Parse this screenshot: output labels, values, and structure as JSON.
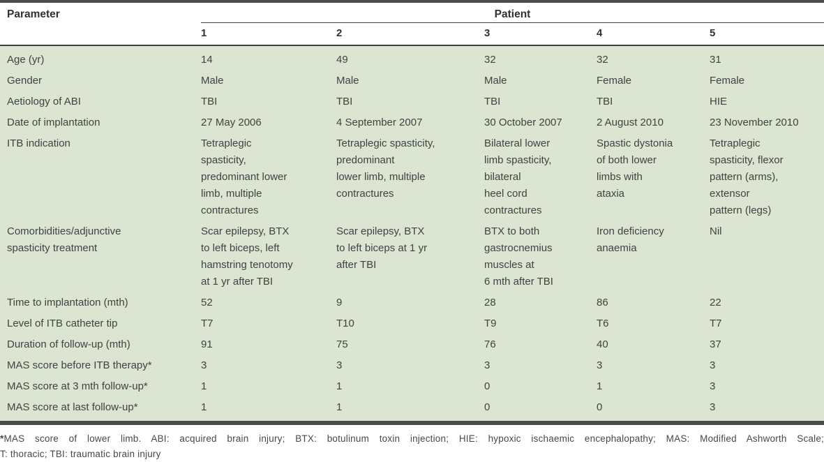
{
  "colors": {
    "body_bg": "#dce4d2",
    "border": "#484d48",
    "text": "#3e4440",
    "header_text": "#2e3331",
    "footnote_text": "#45494a"
  },
  "table": {
    "column_headers": {
      "parameter": "Parameter",
      "group": "Patient",
      "patients": [
        "1",
        "2",
        "3",
        "4",
        "5"
      ]
    },
    "rows": [
      {
        "label": "Age (yr)",
        "values": [
          "14",
          "49",
          "32",
          "32",
          "31"
        ]
      },
      {
        "label": "Gender",
        "values": [
          "Male",
          "Male",
          "Male",
          "Female",
          "Female"
        ]
      },
      {
        "label": "Aetiology of ABI",
        "values": [
          "TBI",
          "TBI",
          "TBI",
          "TBI",
          "HIE"
        ]
      },
      {
        "label": "Date of implantation",
        "values": [
          "27 May 2006",
          "4 September 2007",
          "30 October 2007",
          "2 August 2010",
          "23 November 2010"
        ]
      },
      {
        "label": "ITB indication",
        "values": [
          "Tetraplegic\nspasticity,\npredominant lower\nlimb, multiple\ncontractures",
          "Tetraplegic spasticity,\npredominant\nlower limb, multiple\ncontractures",
          "Bilateral lower\nlimb spasticity,\nbilateral\nheel cord\ncontractures",
          "Spastic dystonia\nof both lower\nlimbs with\nataxia",
          "Tetraplegic\nspasticity, flexor\npattern (arms),\nextensor\npattern (legs)"
        ]
      },
      {
        "label": "Comorbidities/adjunctive\nspasticity treatment",
        "values": [
          "Scar epilepsy, BTX\nto left biceps, left\nhamstring tenotomy\nat 1 yr after TBI",
          "Scar epilepsy, BTX\nto left biceps at 1 yr\nafter TBI",
          "BTX to both\ngastrocnemius\nmuscles at\n6 mth after TBI",
          "Iron deficiency\nanaemia",
          "Nil"
        ]
      },
      {
        "label": "Time to implantation (mth)",
        "values": [
          "52",
          "9",
          "28",
          "86",
          "22"
        ]
      },
      {
        "label": "Level of ITB catheter tip",
        "values": [
          "T7",
          "T10",
          "T9",
          "T6",
          "T7"
        ]
      },
      {
        "label": "Duration of follow-up (mth)",
        "values": [
          "91",
          "75",
          "76",
          "40",
          "37"
        ]
      },
      {
        "label": "MAS score before ITB therapy*",
        "values": [
          "3",
          "3",
          "3",
          "3",
          "3"
        ]
      },
      {
        "label": "MAS score at 3 mth follow-up*",
        "values": [
          "1",
          "1",
          "0",
          "1",
          "3"
        ]
      },
      {
        "label": "MAS score at last follow-up*",
        "values": [
          "1",
          "1",
          "0",
          "0",
          "3"
        ]
      }
    ],
    "footnote": {
      "star": "*",
      "line1": "MAS score of lower limb. ABI: acquired brain injury; BTX: botulinum toxin injection; HIE: hypoxic ischaemic encephalopathy; MAS: Modified Ashworth Scale;",
      "line2": "T: thoracic; TBI: traumatic brain injury"
    }
  }
}
